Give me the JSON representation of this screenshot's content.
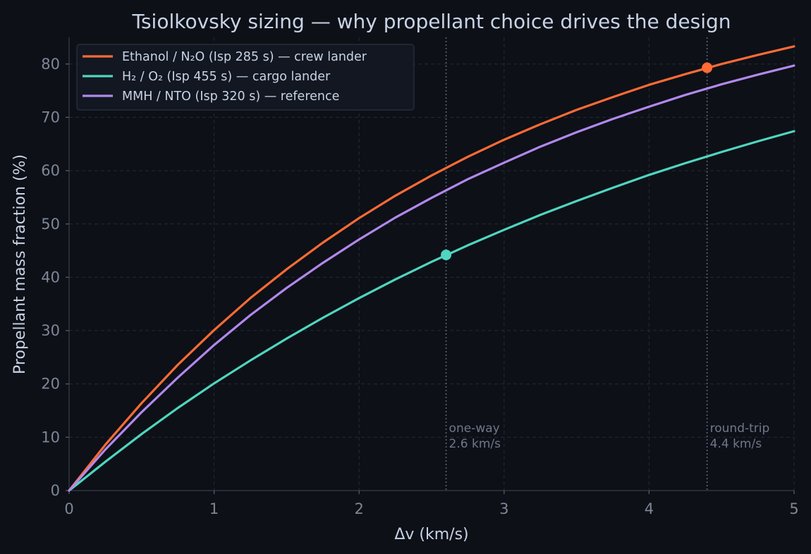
{
  "chart_data": {
    "type": "line",
    "title": "Tsiolkovsky sizing — why propellant choice drives the design",
    "xlabel": "Δv  (km/s)",
    "ylabel": "Propellant mass fraction  (%)",
    "xlim": [
      0,
      5
    ],
    "ylim": [
      0,
      85
    ],
    "xticks": [
      0,
      1,
      2,
      3,
      4,
      5
    ],
    "yticks": [
      0,
      10,
      20,
      30,
      40,
      50,
      60,
      70,
      80
    ],
    "grid": true,
    "legend_position": "top-left",
    "series": [
      {
        "name": "Ethanol / N₂O  (Isp 285 s) — crew lander",
        "color": "#ff6b35",
        "x": [
          0,
          0.25,
          0.5,
          0.75,
          1,
          1.25,
          1.5,
          1.75,
          2,
          2.25,
          2.5,
          2.75,
          3,
          3.25,
          3.5,
          3.75,
          4,
          4.25,
          4.5,
          4.75,
          5
        ],
        "y": [
          0,
          8.6,
          16.4,
          23.6,
          30.1,
          36.1,
          41.5,
          46.5,
          51.1,
          55.3,
          59.1,
          62.6,
          65.8,
          68.7,
          71.4,
          73.8,
          76.1,
          78.1,
          80.0,
          81.7,
          83.3
        ],
        "highlight": {
          "x": 4.4,
          "y": 79.3
        }
      },
      {
        "name": "H₂ / O₂  (Isp 455 s) — cargo lander",
        "color": "#4fd6c0",
        "x": [
          0,
          0.25,
          0.5,
          0.75,
          1,
          1.25,
          1.5,
          1.75,
          2,
          2.25,
          2.5,
          2.75,
          3,
          3.25,
          3.5,
          3.75,
          4,
          4.25,
          4.5,
          4.75,
          5
        ],
        "y": [
          0,
          5.4,
          10.6,
          15.5,
          20.1,
          24.4,
          28.5,
          32.4,
          36.1,
          39.6,
          42.9,
          46.0,
          48.9,
          51.7,
          54.3,
          56.8,
          59.2,
          61.4,
          63.5,
          65.5,
          67.4
        ],
        "highlight": {
          "x": 2.6,
          "y": 44.2
        }
      },
      {
        "name": "MMH / NTO  (Isp 320 s) — reference",
        "color": "#b288ec",
        "x": [
          0,
          0.25,
          0.5,
          0.75,
          1,
          1.25,
          1.5,
          1.75,
          2,
          2.25,
          2.5,
          2.75,
          3,
          3.25,
          3.5,
          3.75,
          4,
          4.25,
          4.5,
          4.75,
          5
        ],
        "y": [
          0,
          7.7,
          14.7,
          21.2,
          27.3,
          32.9,
          38.0,
          42.7,
          47.1,
          51.2,
          54.9,
          58.4,
          61.5,
          64.5,
          67.2,
          69.7,
          72.0,
          74.2,
          76.2,
          78.0,
          79.7
        ]
      }
    ],
    "annotations": [
      {
        "x": 2.6,
        "line1": "one-way",
        "line2": "2.6 km/s"
      },
      {
        "x": 4.4,
        "line1": "round-trip",
        "line2": "4.4 km/s"
      }
    ]
  }
}
